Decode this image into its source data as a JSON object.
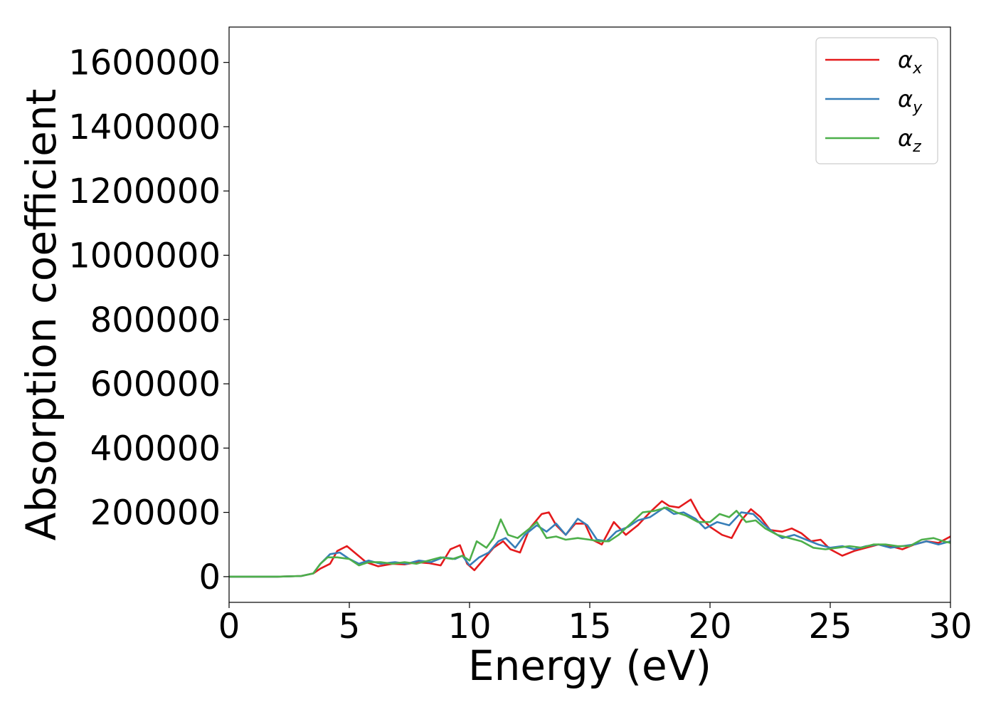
{
  "chart_data": {
    "type": "line",
    "xlabel": "Energy (eV)",
    "ylabel": "Absorption coefficient",
    "xlim": [
      0,
      30
    ],
    "ylim": [
      -80000,
      1710000
    ],
    "xticks": [
      0,
      5,
      10,
      15,
      20,
      25,
      30
    ],
    "yticks": [
      0,
      200000,
      400000,
      600000,
      800000,
      1000000,
      1200000,
      1400000,
      1600000
    ],
    "grid": false,
    "legend_position": "top-right",
    "series": [
      {
        "name": "α",
        "subscript": "x",
        "color": "#e41a1c",
        "points": [
          [
            0,
            0
          ],
          [
            1,
            0
          ],
          [
            2,
            0
          ],
          [
            3,
            2000
          ],
          [
            3.5,
            10000
          ],
          [
            3.8,
            25000
          ],
          [
            4.2,
            40000
          ],
          [
            4.5,
            80000
          ],
          [
            4.9,
            95000
          ],
          [
            5.3,
            70000
          ],
          [
            5.7,
            45000
          ],
          [
            6.2,
            32000
          ],
          [
            6.8,
            40000
          ],
          [
            7.3,
            38000
          ],
          [
            7.8,
            45000
          ],
          [
            8.3,
            42000
          ],
          [
            8.8,
            35000
          ],
          [
            9.2,
            85000
          ],
          [
            9.6,
            98000
          ],
          [
            9.9,
            40000
          ],
          [
            10.2,
            20000
          ],
          [
            10.6,
            55000
          ],
          [
            11.0,
            90000
          ],
          [
            11.4,
            110000
          ],
          [
            11.7,
            85000
          ],
          [
            12.1,
            75000
          ],
          [
            12.5,
            150000
          ],
          [
            13.0,
            195000
          ],
          [
            13.3,
            200000
          ],
          [
            13.6,
            160000
          ],
          [
            14.0,
            130000
          ],
          [
            14.4,
            165000
          ],
          [
            14.8,
            165000
          ],
          [
            15.1,
            115000
          ],
          [
            15.5,
            100000
          ],
          [
            16.0,
            170000
          ],
          [
            16.5,
            130000
          ],
          [
            17.0,
            160000
          ],
          [
            17.5,
            200000
          ],
          [
            18.0,
            235000
          ],
          [
            18.3,
            220000
          ],
          [
            18.7,
            215000
          ],
          [
            19.2,
            240000
          ],
          [
            19.6,
            185000
          ],
          [
            20.0,
            155000
          ],
          [
            20.5,
            130000
          ],
          [
            20.9,
            120000
          ],
          [
            21.3,
            175000
          ],
          [
            21.7,
            210000
          ],
          [
            22.1,
            185000
          ],
          [
            22.5,
            145000
          ],
          [
            23.0,
            140000
          ],
          [
            23.4,
            150000
          ],
          [
            23.8,
            135000
          ],
          [
            24.2,
            110000
          ],
          [
            24.6,
            115000
          ],
          [
            25.0,
            85000
          ],
          [
            25.5,
            65000
          ],
          [
            26.0,
            80000
          ],
          [
            26.5,
            90000
          ],
          [
            27.0,
            100000
          ],
          [
            27.5,
            95000
          ],
          [
            28.0,
            85000
          ],
          [
            28.5,
            100000
          ],
          [
            29.0,
            110000
          ],
          [
            29.5,
            105000
          ],
          [
            30.0,
            125000
          ]
        ]
      },
      {
        "name": "α",
        "subscript": "y",
        "color": "#377eb8",
        "points": [
          [
            0,
            0
          ],
          [
            1,
            0
          ],
          [
            2,
            0
          ],
          [
            3,
            2000
          ],
          [
            3.5,
            10000
          ],
          [
            3.8,
            40000
          ],
          [
            4.2,
            70000
          ],
          [
            4.6,
            75000
          ],
          [
            5.0,
            55000
          ],
          [
            5.4,
            40000
          ],
          [
            5.8,
            50000
          ],
          [
            6.3,
            40000
          ],
          [
            6.9,
            45000
          ],
          [
            7.4,
            40000
          ],
          [
            7.9,
            50000
          ],
          [
            8.4,
            45000
          ],
          [
            8.9,
            60000
          ],
          [
            9.4,
            55000
          ],
          [
            9.7,
            65000
          ],
          [
            10.0,
            35000
          ],
          [
            10.4,
            60000
          ],
          [
            10.8,
            75000
          ],
          [
            11.2,
            110000
          ],
          [
            11.5,
            120000
          ],
          [
            11.9,
            90000
          ],
          [
            12.3,
            130000
          ],
          [
            12.8,
            160000
          ],
          [
            13.2,
            140000
          ],
          [
            13.6,
            165000
          ],
          [
            14.0,
            130000
          ],
          [
            14.5,
            180000
          ],
          [
            14.9,
            160000
          ],
          [
            15.3,
            115000
          ],
          [
            15.7,
            110000
          ],
          [
            16.1,
            140000
          ],
          [
            16.6,
            155000
          ],
          [
            17.0,
            175000
          ],
          [
            17.5,
            185000
          ],
          [
            18.1,
            215000
          ],
          [
            18.5,
            195000
          ],
          [
            18.9,
            200000
          ],
          [
            19.4,
            180000
          ],
          [
            19.8,
            150000
          ],
          [
            20.3,
            170000
          ],
          [
            20.8,
            160000
          ],
          [
            21.3,
            200000
          ],
          [
            21.8,
            195000
          ],
          [
            22.2,
            165000
          ],
          [
            22.6,
            140000
          ],
          [
            23.0,
            120000
          ],
          [
            23.5,
            130000
          ],
          [
            24.0,
            115000
          ],
          [
            24.5,
            100000
          ],
          [
            25.0,
            90000
          ],
          [
            25.5,
            95000
          ],
          [
            26.0,
            85000
          ],
          [
            26.5,
            95000
          ],
          [
            27.0,
            100000
          ],
          [
            27.5,
            90000
          ],
          [
            28.0,
            95000
          ],
          [
            28.5,
            100000
          ],
          [
            29.0,
            110000
          ],
          [
            29.5,
            100000
          ],
          [
            30.0,
            110000
          ]
        ]
      },
      {
        "name": "α",
        "subscript": "z",
        "color": "#4daf4a",
        "points": [
          [
            0,
            0
          ],
          [
            1,
            0
          ],
          [
            2,
            0
          ],
          [
            3,
            2000
          ],
          [
            3.5,
            10000
          ],
          [
            3.8,
            40000
          ],
          [
            4.1,
            60000
          ],
          [
            4.5,
            60000
          ],
          [
            5.0,
            55000
          ],
          [
            5.4,
            35000
          ],
          [
            5.8,
            45000
          ],
          [
            6.3,
            45000
          ],
          [
            6.8,
            40000
          ],
          [
            7.3,
            45000
          ],
          [
            7.8,
            40000
          ],
          [
            8.3,
            50000
          ],
          [
            8.8,
            60000
          ],
          [
            9.3,
            55000
          ],
          [
            9.7,
            65000
          ],
          [
            10.0,
            50000
          ],
          [
            10.3,
            110000
          ],
          [
            10.7,
            90000
          ],
          [
            11.0,
            120000
          ],
          [
            11.3,
            178000
          ],
          [
            11.6,
            130000
          ],
          [
            12.0,
            120000
          ],
          [
            12.5,
            150000
          ],
          [
            12.8,
            170000
          ],
          [
            13.2,
            120000
          ],
          [
            13.6,
            125000
          ],
          [
            14.0,
            115000
          ],
          [
            14.5,
            120000
          ],
          [
            15.0,
            115000
          ],
          [
            15.4,
            110000
          ],
          [
            15.8,
            110000
          ],
          [
            16.2,
            130000
          ],
          [
            16.7,
            165000
          ],
          [
            17.2,
            200000
          ],
          [
            17.7,
            205000
          ],
          [
            18.2,
            215000
          ],
          [
            18.6,
            200000
          ],
          [
            19.0,
            190000
          ],
          [
            19.5,
            170000
          ],
          [
            20.0,
            170000
          ],
          [
            20.4,
            195000
          ],
          [
            20.8,
            185000
          ],
          [
            21.1,
            205000
          ],
          [
            21.5,
            170000
          ],
          [
            21.9,
            175000
          ],
          [
            22.3,
            150000
          ],
          [
            22.8,
            130000
          ],
          [
            23.3,
            120000
          ],
          [
            23.8,
            110000
          ],
          [
            24.3,
            90000
          ],
          [
            24.8,
            85000
          ],
          [
            25.3,
            90000
          ],
          [
            25.8,
            95000
          ],
          [
            26.3,
            90000
          ],
          [
            26.8,
            100000
          ],
          [
            27.3,
            100000
          ],
          [
            27.8,
            95000
          ],
          [
            28.3,
            95000
          ],
          [
            28.8,
            115000
          ],
          [
            29.3,
            120000
          ],
          [
            29.7,
            110000
          ],
          [
            30.0,
            105000
          ]
        ]
      }
    ]
  }
}
